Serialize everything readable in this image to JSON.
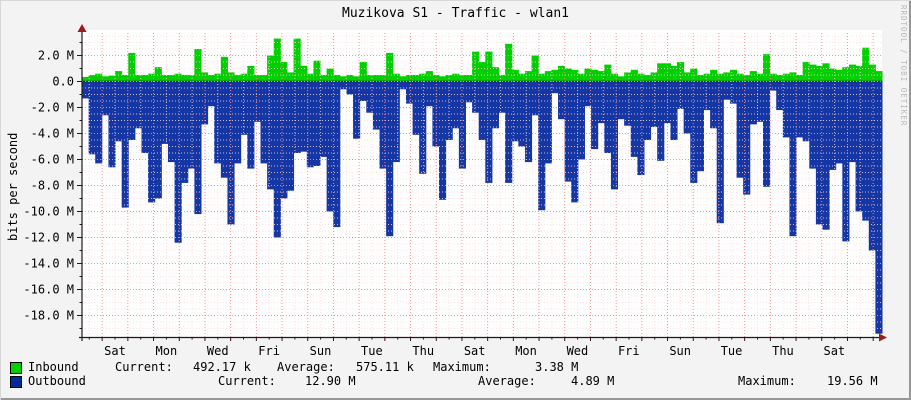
{
  "title": "Muzikova S1 - Traffic - wlan1",
  "watermark": "RRDTOOL / TOBI OETIKER",
  "colors": {
    "inbound": "#00cf00",
    "outbound": "#1536a5",
    "outbound_swatch": "#002a97",
    "grid_minor": "#ffd9d9",
    "grid_major": "#f58f8f",
    "axis": "#1a1a1a",
    "arrow": "#9e1a1a",
    "zero_line": "#000e52",
    "plot_bg": "#ffffff",
    "frame_bg": "#f3f3f3"
  },
  "legend": {
    "inbound": {
      "label": "Inbound",
      "current_label": "Current:",
      "current": "492.17 k",
      "average_label": "Average:",
      "average": "575.11 k",
      "maximum_label": "Maximum:",
      "maximum": "3.38 M"
    },
    "outbound": {
      "label": "Outbound",
      "current_label": "Current:",
      "current": "12.90 M",
      "average_label": "Average:",
      "average": "4.89 M",
      "maximum_label": "Maximum:",
      "maximum": "19.56 M"
    }
  },
  "chart_data": {
    "type": "area",
    "title": "Muzikova S1 - Traffic - wlan1",
    "xlabel": "",
    "ylabel": "bits per second",
    "unit": "Mbit/s",
    "ylim": [
      -19.6,
      3.9
    ],
    "grid": true,
    "legend_position": "bottom-left",
    "x_tick_labels": [
      "Sat",
      "Mon",
      "Wed",
      "Fri",
      "Sun",
      "Tue",
      "Thu",
      "Sat",
      "Mon",
      "Wed",
      "Fri",
      "Sun",
      "Tue",
      "Thu",
      "Sat"
    ],
    "y_tick_values": [
      2,
      0,
      -2,
      -4,
      -6,
      -8,
      -10,
      -12,
      -14,
      -16,
      -18
    ],
    "y_tick_labels": [
      "2.0 M",
      "0.0",
      "-2.0 M",
      "-4.0 M",
      "-6.0 M",
      "-8.0 M",
      "-10.0 M",
      "-12.0 M",
      "-14.0 M",
      "-16.0 M",
      "-18.0 M"
    ],
    "series": [
      {
        "name": "Inbound",
        "color": "#00cf00",
        "values": [
          0.35,
          0.5,
          0.6,
          0.4,
          0.45,
          0.8,
          0.5,
          2.2,
          0.5,
          0.5,
          0.6,
          1.1,
          0.5,
          0.5,
          0.6,
          0.5,
          0.5,
          2.5,
          0.7,
          0.5,
          0.6,
          1.9,
          0.7,
          0.5,
          0.6,
          1.2,
          0.5,
          0.5,
          2.0,
          3.3,
          1.5,
          0.7,
          3.3,
          1.2,
          0.6,
          1.6,
          0.5,
          1.0,
          0.5,
          0.4,
          0.5,
          0.4,
          1.5,
          0.5,
          0.5,
          0.5,
          2.2,
          0.6,
          0.4,
          0.5,
          0.5,
          0.6,
          0.8,
          0.5,
          0.4,
          0.5,
          0.6,
          0.5,
          0.5,
          2.3,
          1.5,
          2.3,
          1.1,
          0.5,
          2.9,
          0.9,
          0.6,
          0.8,
          2.0,
          0.6,
          0.8,
          0.9,
          1.2,
          1.0,
          0.9,
          0.6,
          1.0,
          0.9,
          0.8,
          1.3,
          0.6,
          0.4,
          0.7,
          0.9,
          0.6,
          0.5,
          0.7,
          1.4,
          1.4,
          1.2,
          1.5,
          0.7,
          1.0,
          0.5,
          0.6,
          0.9,
          0.6,
          0.7,
          0.9,
          0.6,
          0.5,
          0.8,
          0.6,
          2.1,
          0.6,
          0.5,
          0.6,
          0.7,
          0.5,
          1.5,
          1.3,
          1.2,
          1.4,
          1.0,
          0.9,
          1.1,
          1.3,
          1.2,
          2.6,
          1.3,
          0.8
        ]
      },
      {
        "name": "Outbound",
        "color": "#1536a5",
        "values": [
          -1.3,
          -5.6,
          -6.3,
          -2.6,
          -6.6,
          -4.6,
          -9.7,
          -4.5,
          -3.6,
          -5.5,
          -9.3,
          -9.0,
          -4.8,
          -6.2,
          -12.4,
          -7.8,
          -6.7,
          -10.2,
          -3.3,
          -1.9,
          -6.3,
          -7.4,
          -11.0,
          -6.3,
          -4.1,
          -6.7,
          -3.1,
          -6.3,
          -8.3,
          -12.0,
          -9.0,
          -8.4,
          -5.5,
          -5.4,
          -6.6,
          -6.5,
          -5.8,
          -10.0,
          -11.2,
          -0.6,
          -1.0,
          -4.4,
          -1.5,
          -2.4,
          -3.7,
          -6.7,
          -11.9,
          -6.2,
          -0.6,
          -1.7,
          -4.1,
          -7.1,
          -1.9,
          -5.0,
          -9.1,
          -4.5,
          -3.6,
          -6.7,
          -1.6,
          -2.4,
          -4.5,
          -7.8,
          -3.6,
          -2.4,
          -7.8,
          -4.6,
          -5.0,
          -6.2,
          -2.6,
          -9.9,
          -6.3,
          -0.9,
          -2.9,
          -7.7,
          -9.3,
          -6.0,
          -1.9,
          -5.2,
          -3.2,
          -5.5,
          -8.3,
          -2.9,
          -3.4,
          -5.8,
          -7.2,
          -4.5,
          -3.5,
          -6.1,
          -3.2,
          -4.5,
          -2.1,
          -4.0,
          -7.8,
          -6.9,
          -2.2,
          -3.6,
          -10.9,
          -1.4,
          -1.7,
          -7.4,
          -8.7,
          -3.3,
          -3.1,
          -8.1,
          -0.7,
          -2.2,
          -4.3,
          -11.9,
          -4.3,
          -4.6,
          -6.7,
          -11.0,
          -11.4,
          -6.8,
          -6.3,
          -12.3,
          -6.2,
          -10.0,
          -10.7,
          -13.0,
          -19.4
        ]
      }
    ]
  }
}
